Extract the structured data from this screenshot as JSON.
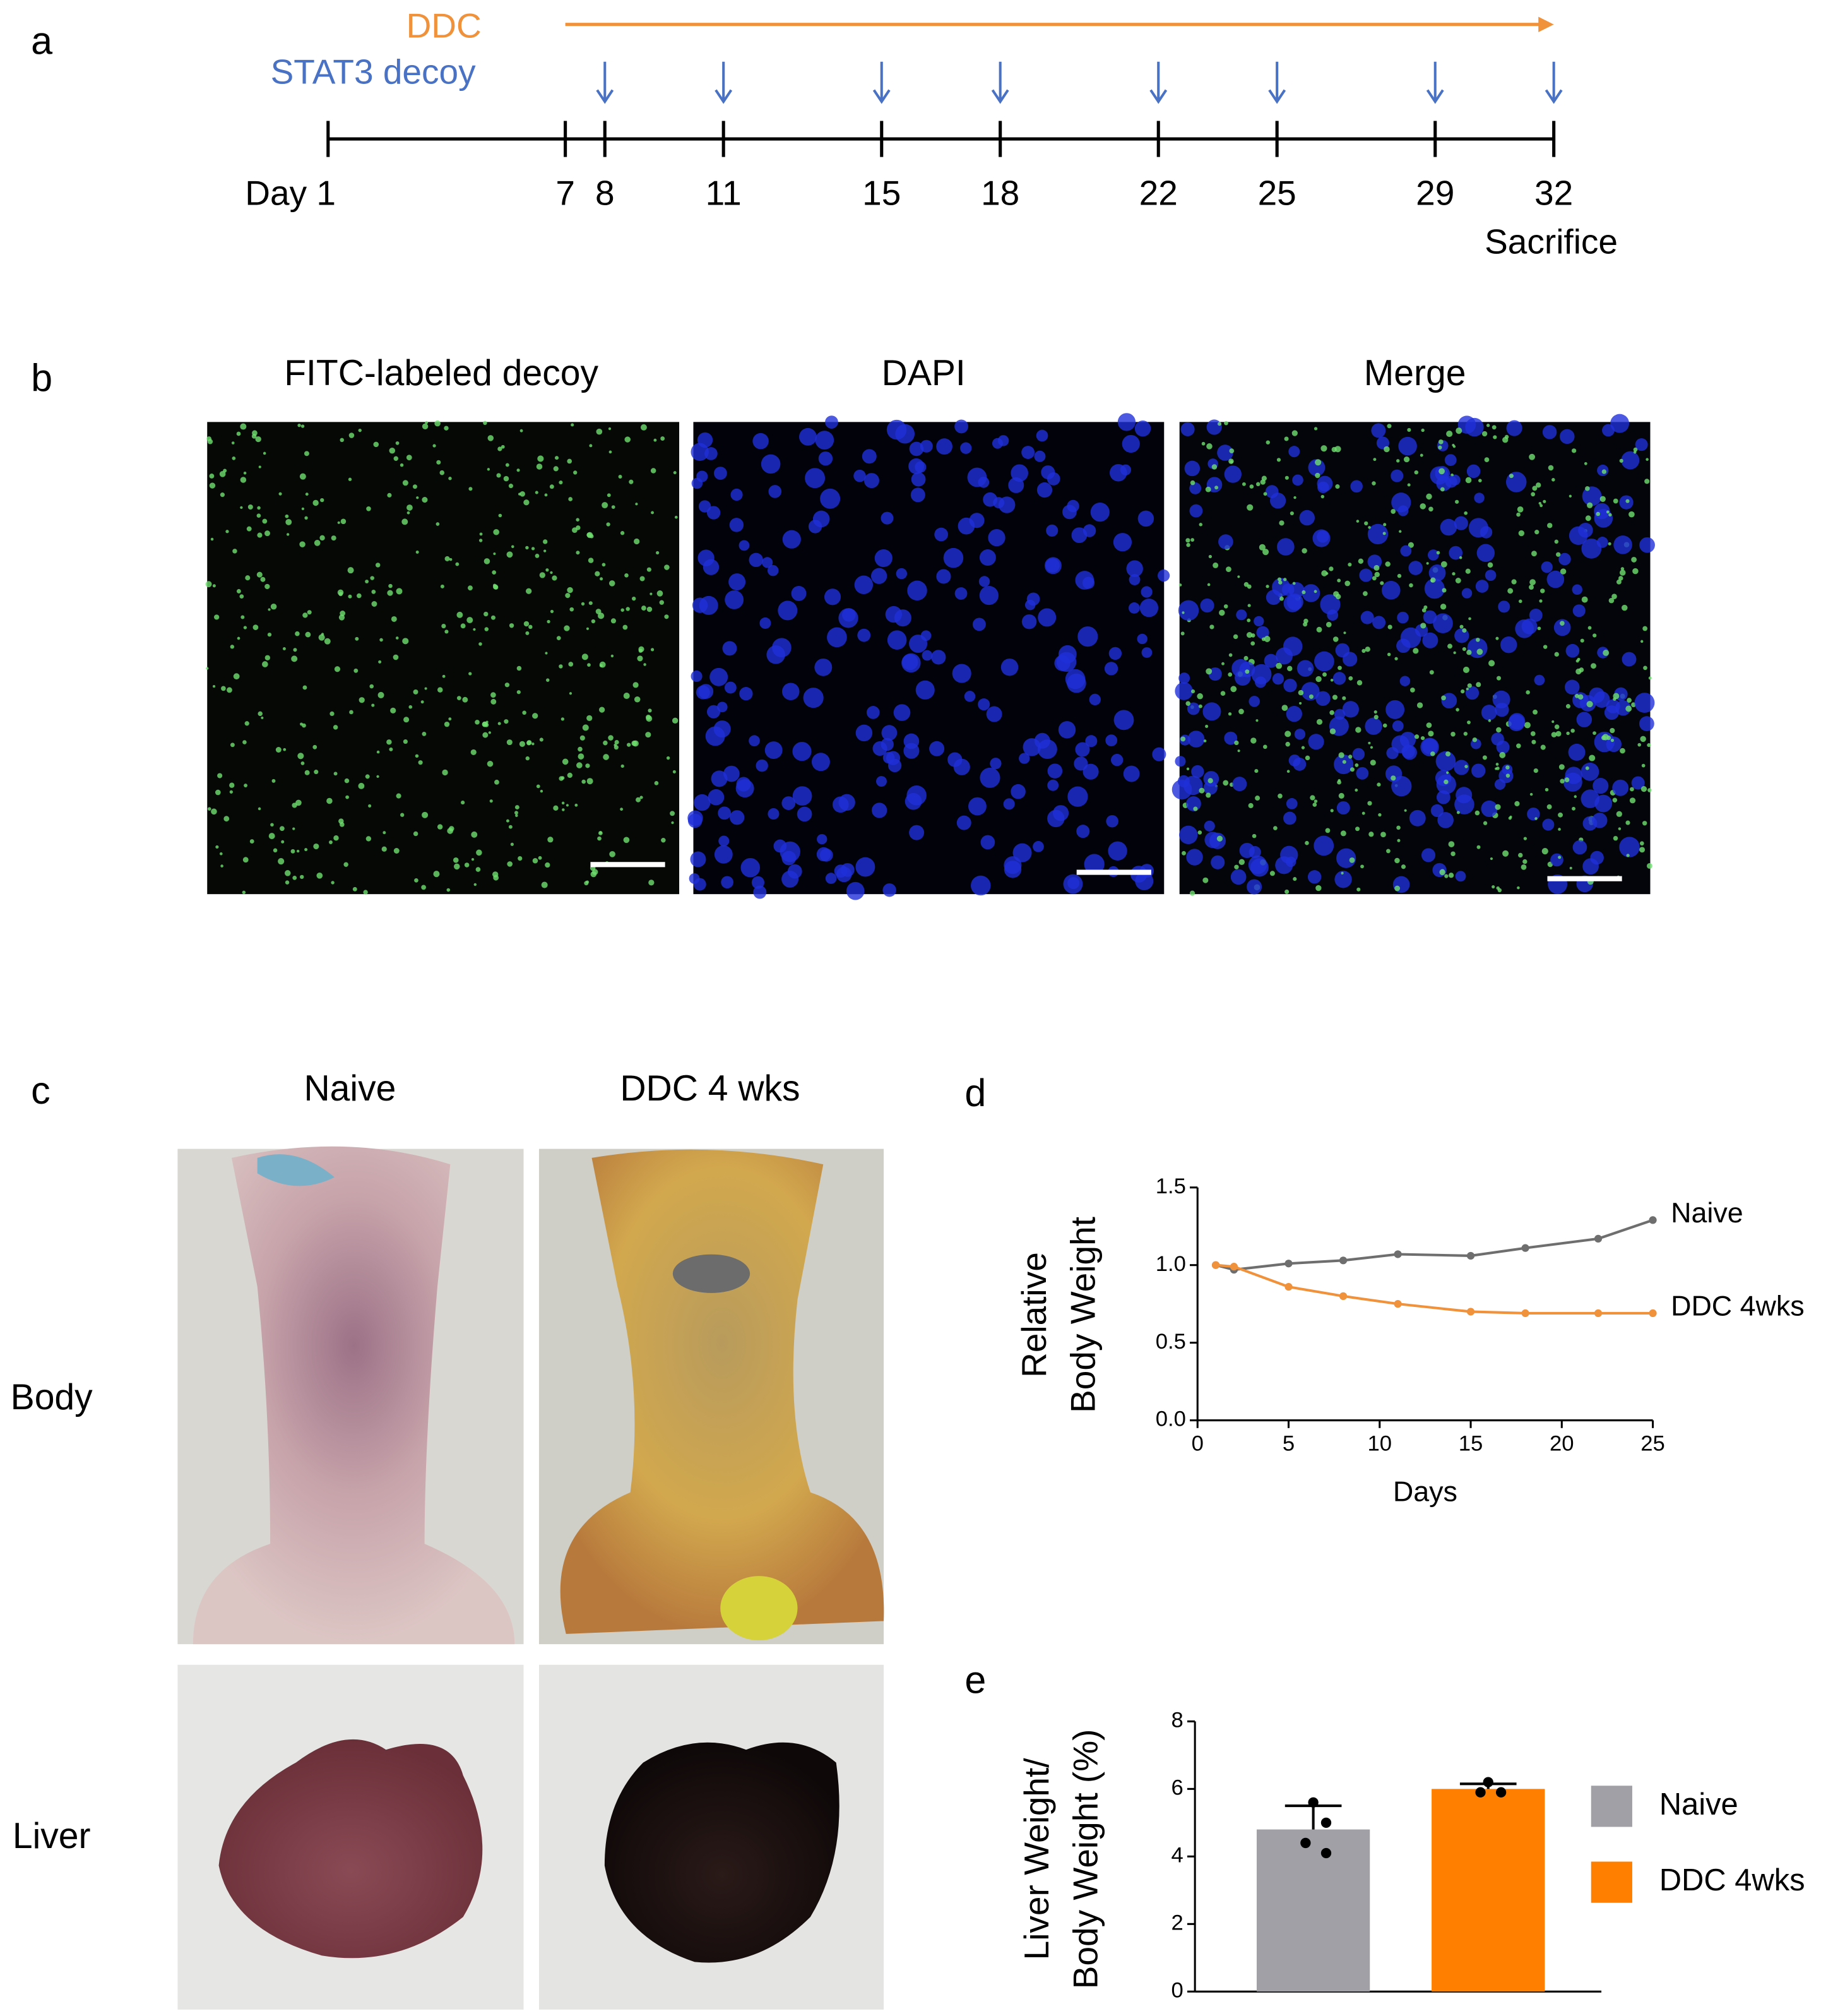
{
  "panel_labels": [
    "a",
    "b",
    "c",
    "d",
    "e"
  ],
  "timeline": {
    "treatments": [
      "DDC",
      "STAT3 decoy"
    ],
    "days": [
      {
        "value": 1,
        "label": "Day 1"
      },
      7,
      8,
      11,
      15,
      18,
      22,
      25,
      29,
      32
    ],
    "ddc_days": [
      7,
      32
    ],
    "decoy_days": [
      8,
      11,
      15,
      18,
      22,
      25,
      29,
      32
    ],
    "end_label": "Sacrifice"
  },
  "microscopy": {
    "titles": [
      "FITC-labeled decoy",
      "DAPI",
      "Merge"
    ]
  },
  "photos": {
    "columns": [
      "Naive",
      "DDC 4 wks"
    ],
    "rows": [
      "Body",
      "Liver"
    ]
  },
  "chart_data": [
    {
      "type": "line",
      "ylabel": [
        "Relative",
        "Body Weight"
      ],
      "xlabel": "Days",
      "x": [
        1,
        2,
        5,
        8,
        11,
        15,
        18,
        22,
        25
      ],
      "series": [
        {
          "name": "Naive",
          "color": "#6e6e6e",
          "values": [
            1.0,
            0.97,
            1.01,
            1.03,
            1.07,
            1.06,
            1.11,
            1.17,
            1.29
          ]
        },
        {
          "name": "DDC 4wks",
          "color": "#f0913b",
          "values": [
            1.0,
            0.99,
            0.86,
            0.8,
            0.75,
            0.7,
            0.69,
            0.69,
            0.69
          ]
        }
      ],
      "xlim": [
        0,
        25
      ],
      "xticks": [
        0,
        5,
        10,
        15,
        20,
        25
      ],
      "ylim": [
        0,
        1.5
      ],
      "yticks": [
        {
          "value": 0,
          "label": "0.0"
        },
        0.5,
        {
          "value": 1,
          "label": "1.0"
        },
        1.5
      ]
    },
    {
      "type": "bar",
      "ylabel": [
        "Liver Weight/",
        "Body Weight (%)"
      ],
      "series": [
        {
          "name": "Naive",
          "color": "#a0a0a6",
          "values": [
            4.8
          ],
          "errors": [
            0.7
          ],
          "points": [
            5.6,
            5.0,
            4.4,
            4.1
          ]
        },
        {
          "name": "DDC 4wks",
          "color": "#ff8000",
          "values": [
            6.0
          ],
          "errors": [
            0.15
          ],
          "points": [
            6.2,
            5.9,
            5.9
          ]
        }
      ],
      "ylim": [
        0,
        8
      ],
      "yticks": [
        0,
        2,
        4,
        6,
        8
      ]
    }
  ]
}
